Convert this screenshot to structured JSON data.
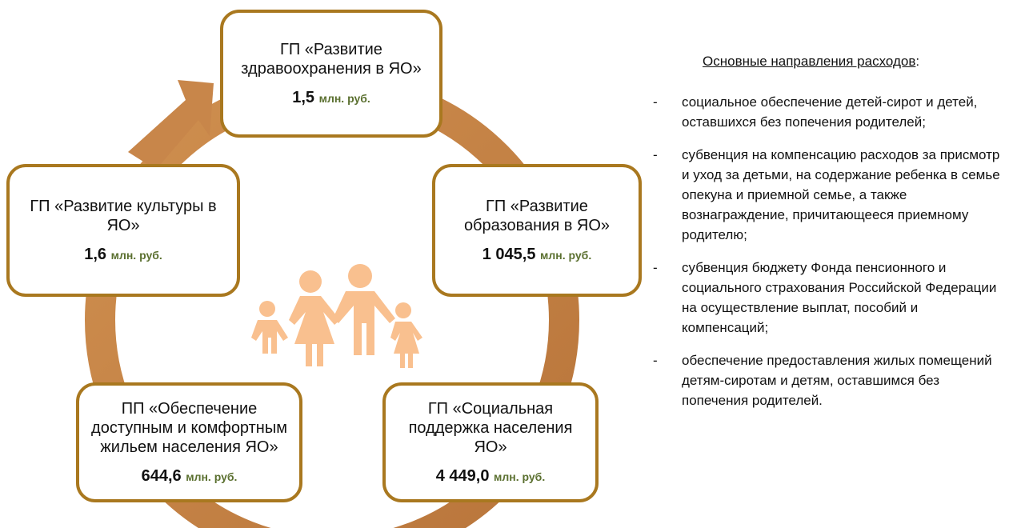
{
  "nodes": [
    {
      "label": "ГП «Развитие здравоохранения в ЯО»",
      "amount": "1,5",
      "unit": "млн. руб."
    },
    {
      "label": "ГП «Развитие образования в ЯО»",
      "amount": "1 045,5",
      "unit": "млн. руб."
    },
    {
      "label": "ГП «Социальная поддержка населения ЯО»",
      "amount": "4 449,0",
      "unit": "млн. руб."
    },
    {
      "label": "ПП «Обеспечение доступным и комфортным жильем населения ЯО»",
      "amount": "644,6",
      "unit": "млн. руб."
    },
    {
      "label": "ГП «Развитие культуры в ЯО»",
      "amount": "1,6",
      "unit": "млн. руб."
    }
  ],
  "panel": {
    "heading": "Основные направления расходов",
    "heading_suffix": ":",
    "items": [
      "социальное обеспечение детей-сирот и детей, оставшихся без попечения родителей;",
      "субвенция на компенсацию расходов за присмотр и уход за детьми, на содержание ребенка в семье опекуна и приемной семье, а также вознаграждение, причитающееся приемному родителю;",
      "субвенция бюджету Фонда пенсионного и социального страхования Российской Федерации на осуществление выплат, пособий и компенсаций;",
      "обеспечение предоставления жилых помещений детям-сиротам и детям, оставшимся без попечения родителей."
    ],
    "bullet": "-"
  }
}
